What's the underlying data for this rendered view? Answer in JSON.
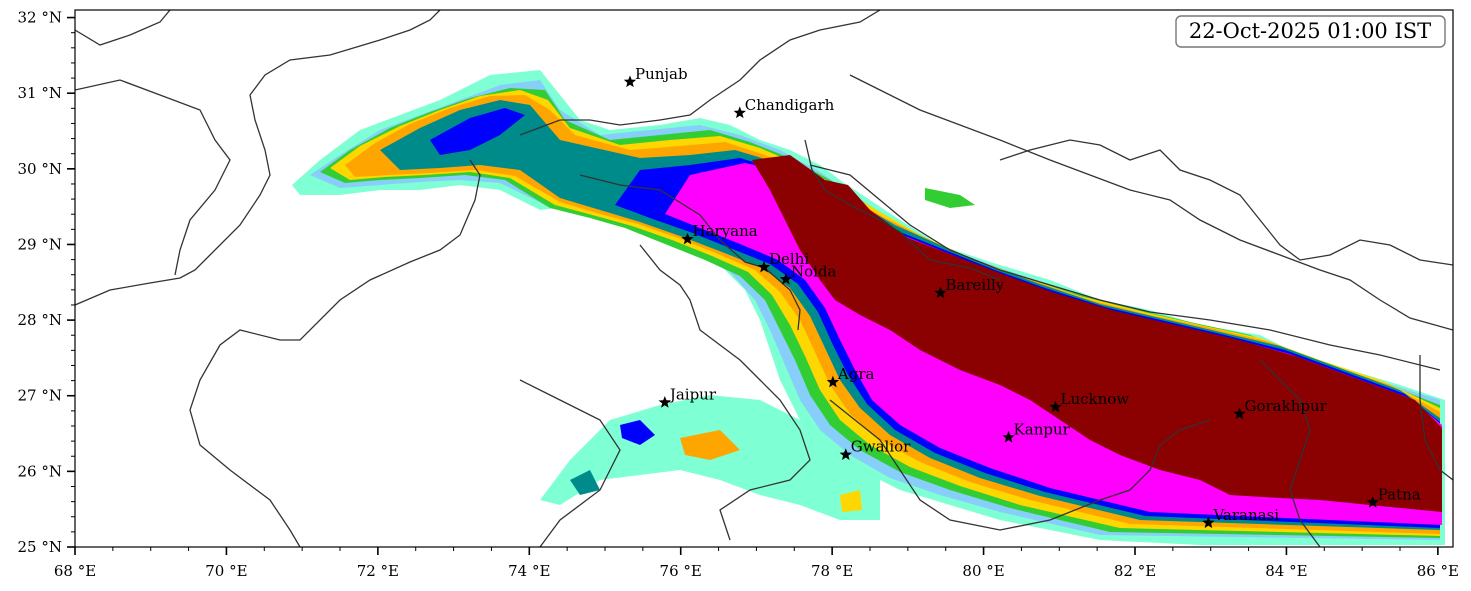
{
  "timestamp": "22-Oct-2025 01:00 IST",
  "axes": {
    "lon_range": [
      68,
      86.2
    ],
    "lat_range": [
      25,
      32.1
    ],
    "x_ticks": [
      {
        "value": 68,
        "label": "68 °E"
      },
      {
        "value": 70,
        "label": "70 °E"
      },
      {
        "value": 72,
        "label": "72 °E"
      },
      {
        "value": 74,
        "label": "74 °E"
      },
      {
        "value": 76,
        "label": "76 °E"
      },
      {
        "value": 78,
        "label": "78 °E"
      },
      {
        "value": 80,
        "label": "80 °E"
      },
      {
        "value": 82,
        "label": "82 °E"
      },
      {
        "value": 84,
        "label": "84 °E"
      },
      {
        "value": 86,
        "label": "86 °E"
      }
    ],
    "y_ticks": [
      {
        "value": 25,
        "label": "25 °N"
      },
      {
        "value": 26,
        "label": "26 °N"
      },
      {
        "value": 27,
        "label": "27 °N"
      },
      {
        "value": 28,
        "label": "28 °N"
      },
      {
        "value": 29,
        "label": "29 °N"
      },
      {
        "value": 30,
        "label": "30 °N"
      },
      {
        "value": 31,
        "label": "31 °N"
      },
      {
        "value": 32,
        "label": "32 °N"
      }
    ]
  },
  "cities": [
    {
      "name": "Punjab",
      "lon": 75.33,
      "lat": 31.15
    },
    {
      "name": "Chandigarh",
      "lon": 76.78,
      "lat": 30.74
    },
    {
      "name": "Haryana",
      "lon": 76.09,
      "lat": 29.07
    },
    {
      "name": "Delhi",
      "lon": 77.1,
      "lat": 28.7
    },
    {
      "name": "Noida",
      "lon": 77.39,
      "lat": 28.54
    },
    {
      "name": "Bareilly",
      "lon": 79.43,
      "lat": 28.36
    },
    {
      "name": "Agra",
      "lon": 78.01,
      "lat": 27.18
    },
    {
      "name": "Gwalior",
      "lon": 78.18,
      "lat": 26.22
    },
    {
      "name": "Jaipur",
      "lon": 75.79,
      "lat": 26.91
    },
    {
      "name": "Lucknow",
      "lon": 80.95,
      "lat": 26.85
    },
    {
      "name": "Kanpur",
      "lon": 80.33,
      "lat": 26.45
    },
    {
      "name": "Gorakhpur",
      "lon": 83.38,
      "lat": 26.76
    },
    {
      "name": "Varanasi",
      "lon": 82.97,
      "lat": 25.32
    },
    {
      "name": "Patna",
      "lon": 85.14,
      "lat": 25.59
    }
  ],
  "colors": {
    "level1": "#7fffd4",
    "level2": "#87cefa",
    "level3": "#32cd32",
    "level4": "#ffd700",
    "level5": "#ffa500",
    "level6": "#008b8b",
    "level7": "#0000ff",
    "level8": "#ff00ff",
    "level9": "#8b0000"
  }
}
